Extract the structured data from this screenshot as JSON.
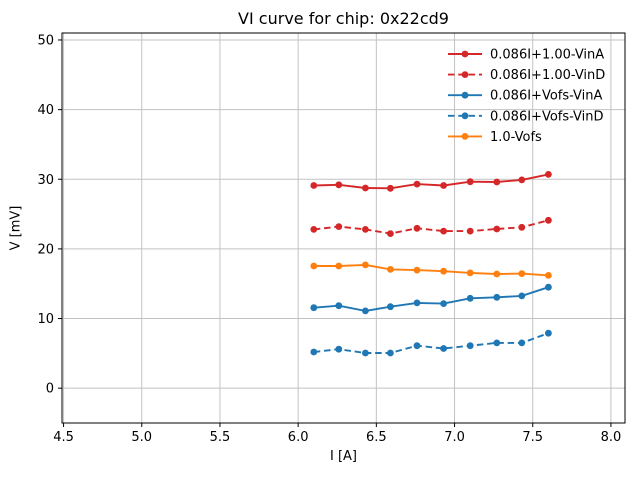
{
  "chart_data": {
    "type": "line",
    "title": "VI curve for chip: 0x22cd9",
    "xlabel": "I [A]",
    "ylabel": "V [mV]",
    "xlim": [
      4.49,
      8.09
    ],
    "ylim": [
      -5,
      51
    ],
    "xticks": [
      4.5,
      5.0,
      5.5,
      6.0,
      6.5,
      7.0,
      7.5,
      8.0
    ],
    "xtick_labels": [
      "4.5",
      "5.0",
      "5.5",
      "6.0",
      "6.5",
      "7.0",
      "7.5",
      "8.0"
    ],
    "yticks": [
      0,
      10,
      20,
      30,
      40,
      50
    ],
    "ytick_labels": [
      "0",
      "10",
      "20",
      "30",
      "40",
      "50"
    ],
    "grid": true,
    "grid_color": "#c2c2c2",
    "axis_color": "#000000",
    "legend": {
      "position": "upper right",
      "frame": false
    },
    "x": [
      6.1,
      6.26,
      6.43,
      6.59,
      6.76,
      6.93,
      7.1,
      7.27,
      7.43,
      7.6
    ],
    "series": [
      {
        "name": "0.086I+1.00-VinA",
        "color": "#d62728",
        "line_style": "solid",
        "marker": "circle",
        "values": [
          29.1,
          29.2,
          28.75,
          28.7,
          29.3,
          29.1,
          29.65,
          29.6,
          29.9,
          30.7
        ]
      },
      {
        "name": "0.086I+1.00-VinD",
        "color": "#d62728",
        "line_style": "dashed",
        "marker": "circle",
        "values": [
          22.8,
          23.2,
          22.8,
          22.2,
          22.95,
          22.55,
          22.55,
          22.85,
          23.1,
          24.1
        ]
      },
      {
        "name": "0.086I+Vofs-VinA",
        "color": "#1f77b4",
        "line_style": "solid",
        "marker": "circle",
        "values": [
          11.55,
          11.85,
          11.1,
          11.7,
          12.25,
          12.15,
          12.9,
          13.05,
          13.25,
          14.5
        ]
      },
      {
        "name": "0.086I+Vofs-VinD",
        "color": "#1f77b4",
        "line_style": "dashed",
        "marker": "circle",
        "values": [
          5.2,
          5.6,
          5.05,
          5.05,
          6.1,
          5.7,
          6.1,
          6.5,
          6.5,
          7.9
        ]
      },
      {
        "name": "1.0-Vofs",
        "color": "#ff7f0e",
        "line_style": "solid",
        "marker": "circle",
        "values": [
          17.55,
          17.55,
          17.7,
          17.05,
          16.95,
          16.8,
          16.55,
          16.4,
          16.45,
          16.2
        ]
      }
    ]
  }
}
